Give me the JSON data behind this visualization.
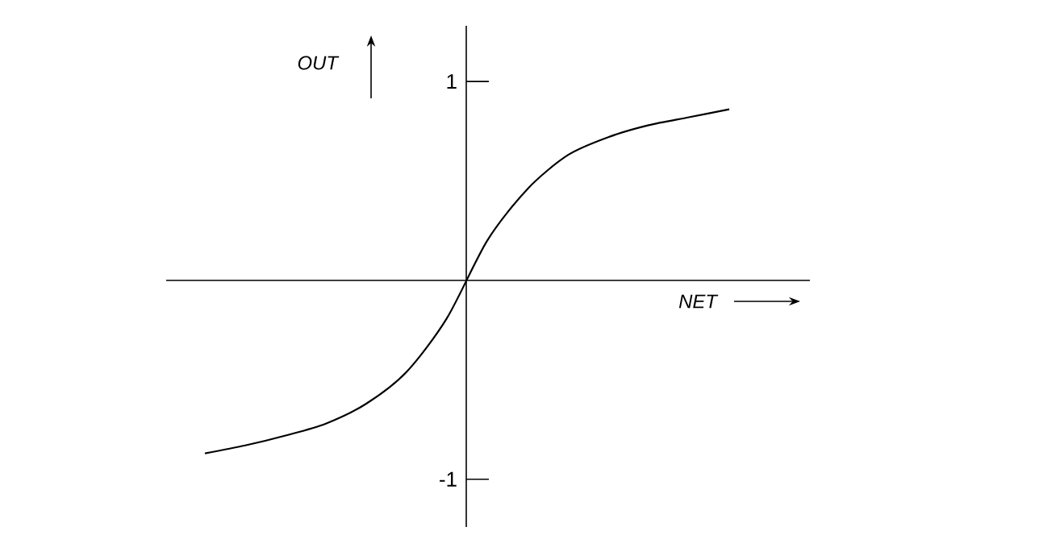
{
  "chart_data": {
    "type": "line",
    "xlabel": "NET",
    "ylabel": "OUT",
    "categories": [
      null,
      null,
      null,
      null,
      null,
      null,
      null,
      null,
      null,
      null,
      null,
      null,
      null,
      null
    ],
    "values": [
      -0.87,
      -0.83,
      -0.78,
      -0.72,
      -0.62,
      -0.46,
      -0.19,
      0.2,
      0.46,
      0.63,
      0.72,
      0.78,
      0.82,
      0.86
    ],
    "color": "#000000",
    "ylim": [
      -1.24,
      1.28
    ],
    "yticks": [
      -1,
      1
    ],
    "tick_labels": "y"
  }
}
